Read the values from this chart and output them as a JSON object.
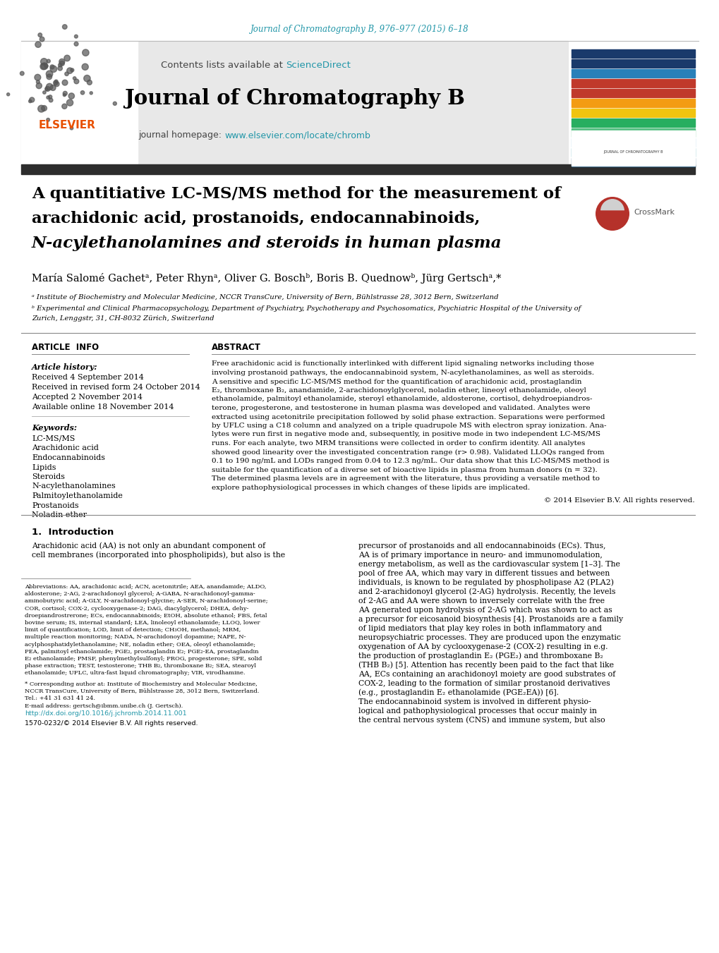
{
  "journal_citation": "Journal of Chromatography B, 976–977 (2015) 6–18",
  "contents_text": "Contents lists available at ",
  "sciencedirect_text": "ScienceDirect",
  "journal_title": "Journal of Chromatography B",
  "homepage_text": "journal homepage: ",
  "homepage_url": "www.elsevier.com/locate/chromb",
  "article_title_line1": "A quantitiative LC-MS/MS method for the measurement of",
  "article_title_line2": "arachidonic acid, prostanoids, endocannabinoids,",
  "article_title_line3": "N-acylethanolamines and steroids in human plasma",
  "authors": "María Salomé Gachetᵃ, Peter Rhynᵃ, Oliver G. Boschᵇ, Boris B. Quednowᵇ, Jürg Gertschᵃ,*",
  "affiliation_a": "ᵃ Institute of Biochemistry and Molecular Medicine, NCCR TransCure, University of Bern, Bühlstrasse 28, 3012 Bern, Switzerland",
  "affiliation_b1": "ᵇ Experimental and Clinical Pharmacopsychology, Department of Psychiatry, Psychotherapy and Psychosomatics, Psychiatric Hospital of the University of",
  "affiliation_b2": "Zurich, Lenggstr, 31, CH-8032 Zürich, Switzerland",
  "article_info_header": "ARTICLE  INFO",
  "abstract_header": "ABSTRACT",
  "article_history_label": "Article history:",
  "received": "Received 4 September 2014",
  "revised": "Received in revised form 24 October 2014",
  "accepted": "Accepted 2 November 2014",
  "available": "Available online 18 November 2014",
  "keywords_label": "Keywords:",
  "keywords": [
    "LC-MS/MS",
    "Arachidonic acid",
    "Endocannabinoids",
    "Lipids",
    "Steroids",
    "N-acylethanolamines",
    "Palmitoylethanolamide",
    "Prostanoids",
    "Noladin ether"
  ],
  "abstract_lines": [
    "Free arachidonic acid is functionally interlinked with different lipid signaling networks including those",
    "involving prostanoid pathways, the endocannabinoid system, N-acylethanolamines, as well as steroids.",
    "A sensitive and specific LC-MS/MS method for the quantification of arachidonic acid, prostaglandin",
    "E₂, thromboxane B₂, anandamide, 2-arachidonoylglycerol, noladin ether, lineoyl ethanolamide, oleoyl",
    "ethanolamide, palmitoyl ethanolamide, steroyl ethanolamide, aldosterone, cortisol, dehydroepiandros-",
    "terone, progesterone, and testosterone in human plasma was developed and validated. Analytes were",
    "extracted using acetonitrile precipitation followed by solid phase extraction. Separations were performed",
    "by UFLC using a C18 column and analyzed on a triple quadrupole MS with electron spray ionization. Ana-",
    "lytes were run first in negative mode and, subsequently, in positive mode in two independent LC-MS/MS",
    "runs. For each analyte, two MRM transitions were collected in order to confirm identity. All analytes",
    "showed good linearity over the investigated concentration range (r> 0.98). Validated LLOQs ranged from",
    "0.1 to 190 ng/mL and LODs ranged from 0.04 to 12.3 ng/mL. Our data show that this LC-MS/MS method is",
    "suitable for the quantification of a diverse set of bioactive lipids in plasma from human donors (n = 32).",
    "The determined plasma levels are in agreement with the literature, thus providing a versatile method to",
    "explore pathophysiological processes in which changes of these lipids are implicated."
  ],
  "copyright": "© 2014 Elsevier B.V. All rights reserved.",
  "introduction_header": "1.  Introduction",
  "intro_col1_lines": [
    "Arachidonic acid (AA) is not only an abundant component of",
    "cell membranes (incorporated into phospholipids), but also is the"
  ],
  "intro_col2_lines": [
    "precursor of prostanoids and all endocannabinoids (ECs). Thus,",
    "AA is of primary importance in neuro- and immunomodulation,"
  ],
  "footnote_lines": [
    "Abbreviations: AA, arachidonic acid; ACN, acetonitrile; AEA, anandamide; ALDO,",
    "aldosterone; 2-AG, 2-arachidonoyl glycerol; A-GABA, N-arachidonoyl-gamma-",
    "aminobutyric acid; A-GLY, N-arachidonoyl-glycine; A-SER, N-arachidonoyl-serine;",
    "COR, cortisol; COX-2, cyclooxygenase-2; DAG, diacylglycerol; DHEA, dehy-",
    "droepiandrostrerone; ECs, endocannabinoids; EtOH, absolute ethanol; FBS, fetal",
    "bovine serum; IS, internal standard; LEA, linoleoyl ethanolamide; LLOQ, lower",
    "limit of quantification; LOD, limit of detection; CH₃OH, methanol; MRM,",
    "multiple reaction monitoring; NADA, N-arachidonoyl dopamine; NAPE, N-",
    "acylphosphatidylethanolamine; NE, noladin ether; OEA, oleoyl ethanolamide;",
    "PEA, palmitoyl ethanolamide; PGE₂, prostaglandin E₂; PGE₂-EA, prostaglandin",
    "E₂ ethanolamide; PMSF, phenylmethylsulfonyl; PROG, progesterone; SPE, solid",
    "phase extraction; TEST, testosterone; THB B₂, thromboxane B₂; SEA, stearoyl",
    "ethanolamide; UFLC, ultra-fast liquid chromatography; VIR, virodhamine."
  ],
  "corr_author_lines": [
    "* Corresponding author at: Institute of Biochemistry and Molecular Medicine,",
    "NCCR TransCure, University of Bern, Bühlstrasse 28, 3012 Bern, Switzerland.",
    "Tel.: +41 31 631 41 24.",
    "E-mail address: gertsch@ibmm.unibe.ch (J. Gertsch)."
  ],
  "doi_line1": "http://dx.doi.org/10.1016/j.jchromb.2014.11.001",
  "doi_line2": "1570-0232/© 2014 Elsevier B.V. All rights reserved.",
  "right_col2_lines": [
    "precursor of prostanoids and all endocannabinoids (ECs). Thus,",
    "AA is of primary importance in neuro- and immunomodulation,",
    "energy metabolism, as well as the cardiovascular system [1–3]. The",
    "pool of free AA, which may vary in different tissues and between",
    "individuals, is known to be regulated by phospholipase A2 (PLA2)",
    "and 2-arachidonoyl glycerol (2-AG) hydrolysis. Recently, the levels",
    "of 2-AG and AA were shown to inversely correlate with the free",
    "AA generated upon hydrolysis of 2-AG which was shown to act as",
    "a precursor for eicosanoid biosynthesis [4]. Prostanoids are a family",
    "of lipid mediators that play key roles in both inflammatory and",
    "neuropsychiatric processes. They are produced upon the enzymatic",
    "oxygenation of AA by cyclooxygenase-2 (COX-2) resulting in e.g.",
    "the production of prostaglandin E₂ (PGE₂) and thromboxane B₂",
    "(THB B₂) [5]. Attention has recently been paid to the fact that like",
    "AA, ECs containing an arachidonoyl moiety are good substrates of",
    "COX-2, leading to the formation of similar prostanoid derivatives",
    "(e.g., prostaglandin E₂ ethanolamide (PGE₂EA)) [6].",
    "The endocannabinoid system is involved in different physio-",
    "logical and pathophysiological processes that occur mainly in",
    "the central nervous system (CNS) and immune system, but also"
  ],
  "bg_color": "#ffffff",
  "dark_bar_color": "#2d2d2d",
  "citation_color": "#2196a8",
  "sciencedirect_color": "#2196a8",
  "url_color": "#2196a8",
  "title_color": "#000000",
  "light_gray": "#e8e8e8",
  "cover_bar_colors": [
    "#1a3a6b",
    "#1a3a6b",
    "#2980b9",
    "#c0392b",
    "#c0392b",
    "#f39c12",
    "#f1c40f",
    "#27ae60",
    "#52be80",
    "#85c1e9",
    "#2196a8",
    "#1a5276"
  ]
}
